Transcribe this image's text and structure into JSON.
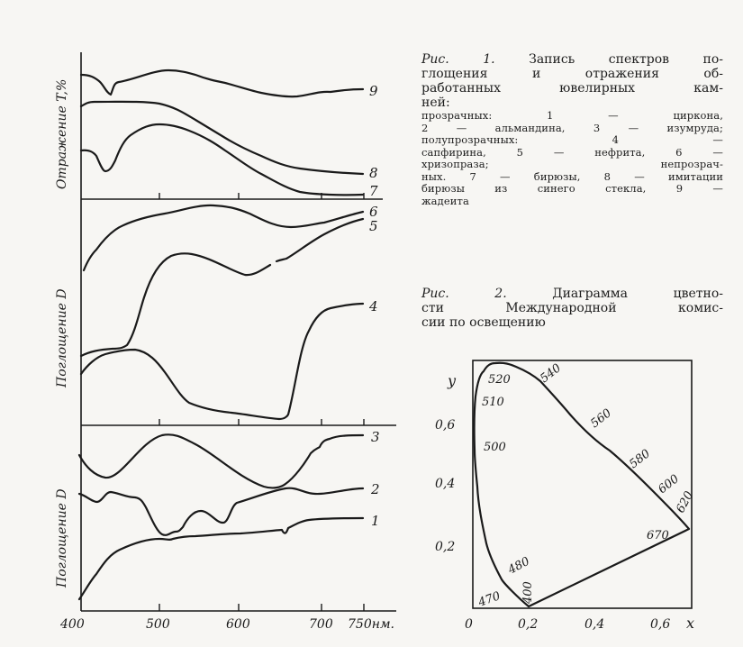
{
  "figure1_caption": {
    "label": "Рис. 1.",
    "lines": [
      "Запись спектров по-",
      "глощения и отражения об-",
      "работанных ювелирных кам-",
      "ней:"
    ],
    "legend_lines": [
      "прозрачных:  1 — циркона,",
      "2 — альмандина,  3 — изумруда;",
      "полупрозрачных:  4 —",
      "сапфирина,  5 — нефрита,  6 —",
      "хризопраза;  непрозрач-",
      "ных. 7 — бирюзы, 8 — имитации",
      "бирюзы из синего стекла, 9 —",
      "жадеита"
    ]
  },
  "figure2_caption": {
    "label": "Рис. 2.",
    "lines": [
      "Диаграмма цветно-",
      "сти Международной комис-",
      "сии по освещению"
    ]
  },
  "chart_data": [
    {
      "type": "line",
      "title": "Рис. 1. Запись спектров поглощения и отражения",
      "xlabel": "нм",
      "x_ticks": [
        "400",
        "500",
        "600",
        "700",
        "750нм."
      ],
      "xlim": [
        400,
        750
      ],
      "panels": [
        {
          "ylabel": "Отражение T,%",
          "series": [
            {
              "name": "9",
              "x": [
                400,
                420,
                430,
                440,
                460,
                500,
                550,
                600,
                650,
                700,
                750
              ],
              "y": [
                0.85,
                0.8,
                0.72,
                0.82,
                0.9,
                0.88,
                0.8,
                0.74,
                0.72,
                0.75,
                0.76
              ]
            },
            {
              "name": "8",
              "x": [
                400,
                420,
                500,
                550,
                600,
                650,
                700,
                750
              ],
              "y": [
                0.65,
                0.68,
                0.67,
                0.55,
                0.43,
                0.3,
                0.22,
                0.18
              ]
            },
            {
              "name": "7",
              "x": [
                400,
                420,
                430,
                440,
                460,
                500,
                550,
                600,
                650,
                700,
                750
              ],
              "y": [
                0.35,
                0.33,
                0.2,
                0.26,
                0.45,
                0.53,
                0.48,
                0.35,
                0.18,
                0.05,
                0.03
              ]
            }
          ]
        },
        {
          "ylabel": "Поглощение D",
          "series": [
            {
              "name": "6",
              "x": [
                400,
                420,
                450,
                500,
                550,
                600,
                650,
                700,
                750
              ],
              "y": [
                0.7,
                0.78,
                0.88,
                0.94,
                0.97,
                0.93,
                0.87,
                0.89,
                0.94
              ]
            },
            {
              "name": "5",
              "x": [
                400,
                460,
                480,
                510,
                540,
                600,
                640,
                700,
                750
              ],
              "y": [
                0.31,
                0.35,
                0.57,
                0.76,
                0.76,
                0.67,
                0.74,
                0.86,
                0.92
              ]
            },
            {
              "name": "4",
              "x": [
                400,
                430,
                460,
                500,
                530,
                580,
                640,
                650,
                680,
                700,
                750
              ],
              "y": [
                0.23,
                0.32,
                0.34,
                0.24,
                0.1,
                0.05,
                0.03,
                0.05,
                0.42,
                0.52,
                0.54
              ]
            }
          ]
        },
        {
          "ylabel": "Поглощение D",
          "series": [
            {
              "name": "3",
              "x": [
                400,
                430,
                500,
                540,
                620,
                650,
                690,
                710,
                750
              ],
              "y": [
                0.8,
                0.7,
                0.9,
                0.86,
                0.67,
                0.68,
                0.82,
                0.88,
                0.89
              ]
            },
            {
              "name": "2",
              "x": [
                400,
                420,
                440,
                470,
                480,
                500,
                520,
                550,
                580,
                600,
                650,
                700,
                750
              ],
              "y": [
                0.63,
                0.6,
                0.64,
                0.61,
                0.58,
                0.44,
                0.46,
                0.55,
                0.5,
                0.59,
                0.66,
                0.63,
                0.66
              ]
            },
            {
              "name": "1",
              "x": [
                400,
                420,
                450,
                500,
                550,
                600,
                650,
                680,
                750
              ],
              "y": [
                0.06,
                0.17,
                0.28,
                0.33,
                0.34,
                0.35,
                0.37,
                0.41,
                0.42
              ]
            }
          ]
        }
      ]
    },
    {
      "type": "line",
      "title": "Рис. 2. Диаграмма цветности МКО",
      "xlabel": "x",
      "ylabel": "y",
      "x_ticks": [
        "0",
        "0,2",
        "0,4",
        "0,6"
      ],
      "y_ticks": [
        "0,2",
        "0,4",
        "0,6"
      ],
      "wavelength_labels": [
        "520",
        "540",
        "510",
        "560",
        "500",
        "580",
        "600",
        "620",
        "670",
        "480",
        "400",
        "470"
      ]
    }
  ]
}
